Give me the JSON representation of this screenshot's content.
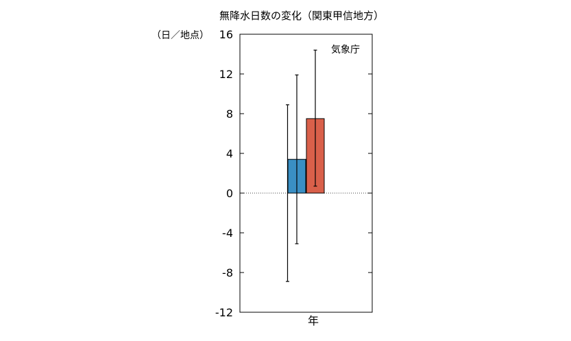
{
  "chart_data": {
    "type": "bar",
    "title": "無降水日数の変化（関東甲信地方）",
    "ylabel": "（日／地点）",
    "annotation": "気象庁",
    "categories": [
      "年"
    ],
    "ylim": [
      -12,
      16
    ],
    "yticks": [
      16,
      12,
      8,
      4,
      0,
      -4,
      -8,
      -12
    ],
    "ytick_labels": [
      "16",
      "12",
      "8",
      "4",
      "0",
      "-4",
      "-8",
      "-12"
    ],
    "grid": false,
    "zero_line": "dotted",
    "series": [
      {
        "color": "#3a8fc4",
        "values": [
          3.4
        ],
        "error_low": [
          -5.1
        ],
        "error_high": [
          11.9
        ]
      },
      {
        "color": "#d9604a",
        "values": [
          7.5
        ],
        "error_low": [
          0.7
        ],
        "error_high": [
          14.4
        ]
      }
    ],
    "extra_errorbars": [
      {
        "center": 0.0,
        "low": -8.9,
        "high": 8.9
      }
    ]
  }
}
